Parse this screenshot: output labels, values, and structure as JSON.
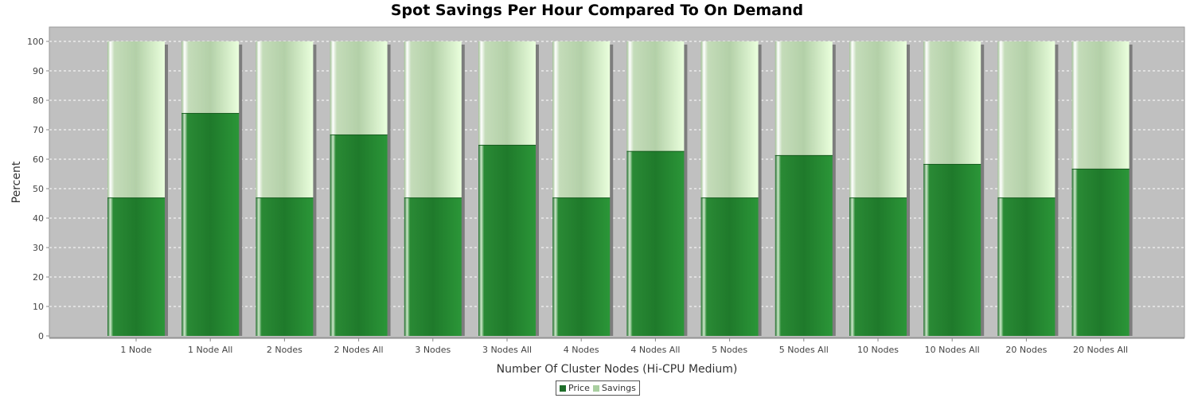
{
  "chart_data": {
    "type": "bar",
    "stacked": true,
    "title": "Spot Savings Per Hour Compared To On Demand",
    "xlabel": "Number Of Cluster Nodes (Hi-CPU Medium)",
    "ylabel": "Percent",
    "ylim": [
      0,
      100
    ],
    "yticks": [
      0,
      10,
      20,
      30,
      40,
      50,
      60,
      70,
      80,
      90,
      100
    ],
    "grid": true,
    "legend_position": "bottom-center",
    "categories": [
      "1 Node",
      "1 Node All",
      "2 Nodes",
      "2 Nodes All",
      "3 Nodes",
      "3 Nodes All",
      "4 Nodes",
      "4 Nodes All",
      "5 Nodes",
      "5 Nodes All",
      "10 Nodes",
      "10 Nodes All",
      "20 Nodes",
      "20 Nodes All"
    ],
    "series": [
      {
        "name": "Price",
        "color": "#2a8a35",
        "values": [
          47,
          75.7,
          47,
          68.4,
          47,
          64.9,
          47,
          62.8,
          47,
          61.4,
          47,
          58.4,
          47,
          56.8
        ]
      },
      {
        "name": "Savings",
        "color": "#cfe8c4",
        "values": [
          53,
          24.3,
          53,
          31.6,
          53,
          35.1,
          53,
          37.2,
          53,
          38.6,
          53,
          41.6,
          53,
          43.2
        ]
      }
    ],
    "colors": {
      "plot_background": "#c0c0c0",
      "price": "#2a8a35",
      "savings": "#cfe8c4",
      "legend_price_swatch": "#1f6e2a",
      "legend_savings_swatch": "#a9cfa0"
    }
  }
}
